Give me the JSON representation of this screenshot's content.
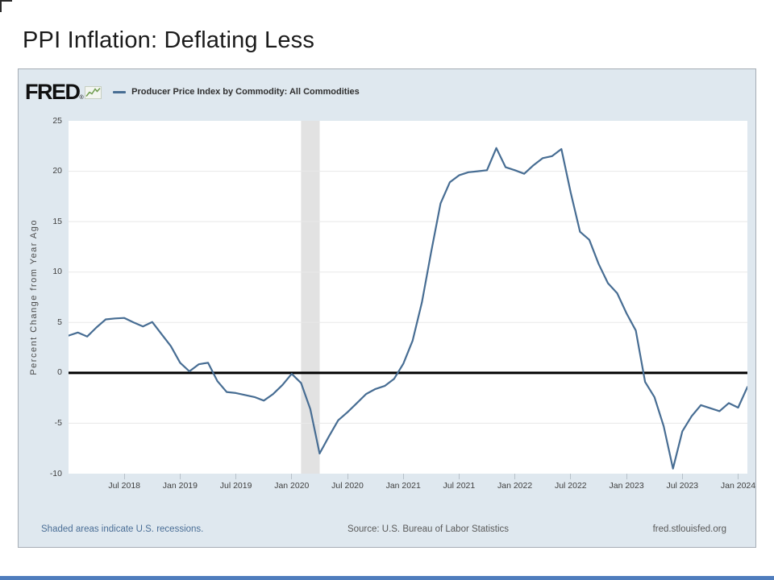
{
  "slide": {
    "title": "PPI Inflation: Deflating Less"
  },
  "chart": {
    "brand": "FRED",
    "brand_mark": "®",
    "legend_label": "Producer Price Index by Commodity: All Commodities"
  },
  "footer": {
    "recessions_note": "Shaded areas indicate U.S. recessions.",
    "source": "Source: U.S. Bureau of Labor Statistics",
    "site": "fred.stlouisfed.org"
  },
  "colors": {
    "panel_background": "#dfe8ef",
    "plot_background": "#ffffff",
    "line": "#476d93",
    "recession_band": "#e2e2e2",
    "zero_line": "#000000",
    "gridline": "#e8e8e8",
    "link_blue": "#4a6e96",
    "footer_gray": "#595959"
  },
  "chart_data": {
    "type": "line",
    "title": "Producer Price Index by Commodity: All Commodities",
    "xlabel": "",
    "ylabel": "Percent Change from Year Ago",
    "ylim": [
      -10,
      25
    ],
    "y_ticks": [
      25,
      20,
      15,
      10,
      5,
      0,
      -5,
      -10
    ],
    "grid": "horizontal-only",
    "legend_position": "top-left",
    "x_frequency": "monthly",
    "x_start": "2018-01",
    "x_end": "2024-02",
    "months": [
      "2018-01",
      "2018-02",
      "2018-03",
      "2018-04",
      "2018-05",
      "2018-06",
      "2018-07",
      "2018-08",
      "2018-09",
      "2018-10",
      "2018-11",
      "2018-12",
      "2019-01",
      "2019-02",
      "2019-03",
      "2019-04",
      "2019-05",
      "2019-06",
      "2019-07",
      "2019-08",
      "2019-09",
      "2019-10",
      "2019-11",
      "2019-12",
      "2020-01",
      "2020-02",
      "2020-03",
      "2020-04",
      "2020-05",
      "2020-06",
      "2020-07",
      "2020-08",
      "2020-09",
      "2020-10",
      "2020-11",
      "2020-12",
      "2021-01",
      "2021-02",
      "2021-03",
      "2021-04",
      "2021-05",
      "2021-06",
      "2021-07",
      "2021-08",
      "2021-09",
      "2021-10",
      "2021-11",
      "2021-12",
      "2022-01",
      "2022-02",
      "2022-03",
      "2022-04",
      "2022-05",
      "2022-06",
      "2022-07",
      "2022-08",
      "2022-09",
      "2022-10",
      "2022-11",
      "2022-12",
      "2023-01",
      "2023-02",
      "2023-03",
      "2023-04",
      "2023-05",
      "2023-06",
      "2023-07",
      "2023-08",
      "2023-09",
      "2023-10",
      "2023-11",
      "2023-12",
      "2024-01",
      "2024-02"
    ],
    "values": [
      3.7,
      4.0,
      3.6,
      4.5,
      5.3,
      5.4,
      5.45,
      5.0,
      4.6,
      5.05,
      3.85,
      2.65,
      1.0,
      0.15,
      0.85,
      1.0,
      -0.8,
      -1.9,
      -2.0,
      -2.2,
      -2.4,
      -2.75,
      -2.1,
      -1.2,
      -0.1,
      -1.0,
      -3.6,
      -8.0,
      -6.3,
      -4.7,
      -3.9,
      -3.0,
      -2.1,
      -1.6,
      -1.3,
      -0.6,
      0.9,
      3.2,
      7.0,
      12.0,
      16.8,
      18.9,
      19.6,
      19.9,
      20.0,
      20.1,
      22.3,
      20.4,
      20.1,
      19.75,
      20.6,
      21.3,
      21.5,
      22.2,
      17.9,
      14.0,
      13.2,
      10.8,
      8.9,
      7.9,
      5.9,
      4.2,
      -0.9,
      -2.4,
      -5.3,
      -9.5,
      -5.8,
      -4.3,
      -3.2,
      -3.5,
      -3.8,
      -3.0,
      -3.45,
      -1.4
    ],
    "x_ticks": [
      {
        "m": 6,
        "label": "Jul 2018"
      },
      {
        "m": 12,
        "label": "Jan 2019"
      },
      {
        "m": 18,
        "label": "Jul 2019"
      },
      {
        "m": 24,
        "label": "Jan 2020"
      },
      {
        "m": 30,
        "label": "Jul 2020"
      },
      {
        "m": 36,
        "label": "Jan 2021"
      },
      {
        "m": 42,
        "label": "Jul 2021"
      },
      {
        "m": 48,
        "label": "Jan 2022"
      },
      {
        "m": 54,
        "label": "Jul 2022"
      },
      {
        "m": 60,
        "label": "Jan 2023"
      },
      {
        "m": 66,
        "label": "Jul 2023"
      },
      {
        "m": 72,
        "label": "Jan 2024"
      }
    ],
    "zero_line": 0,
    "recession_band": {
      "from_m": 25,
      "to_m": 27
    },
    "line_color": "#476d93",
    "band_color": "#e2e2e2"
  }
}
